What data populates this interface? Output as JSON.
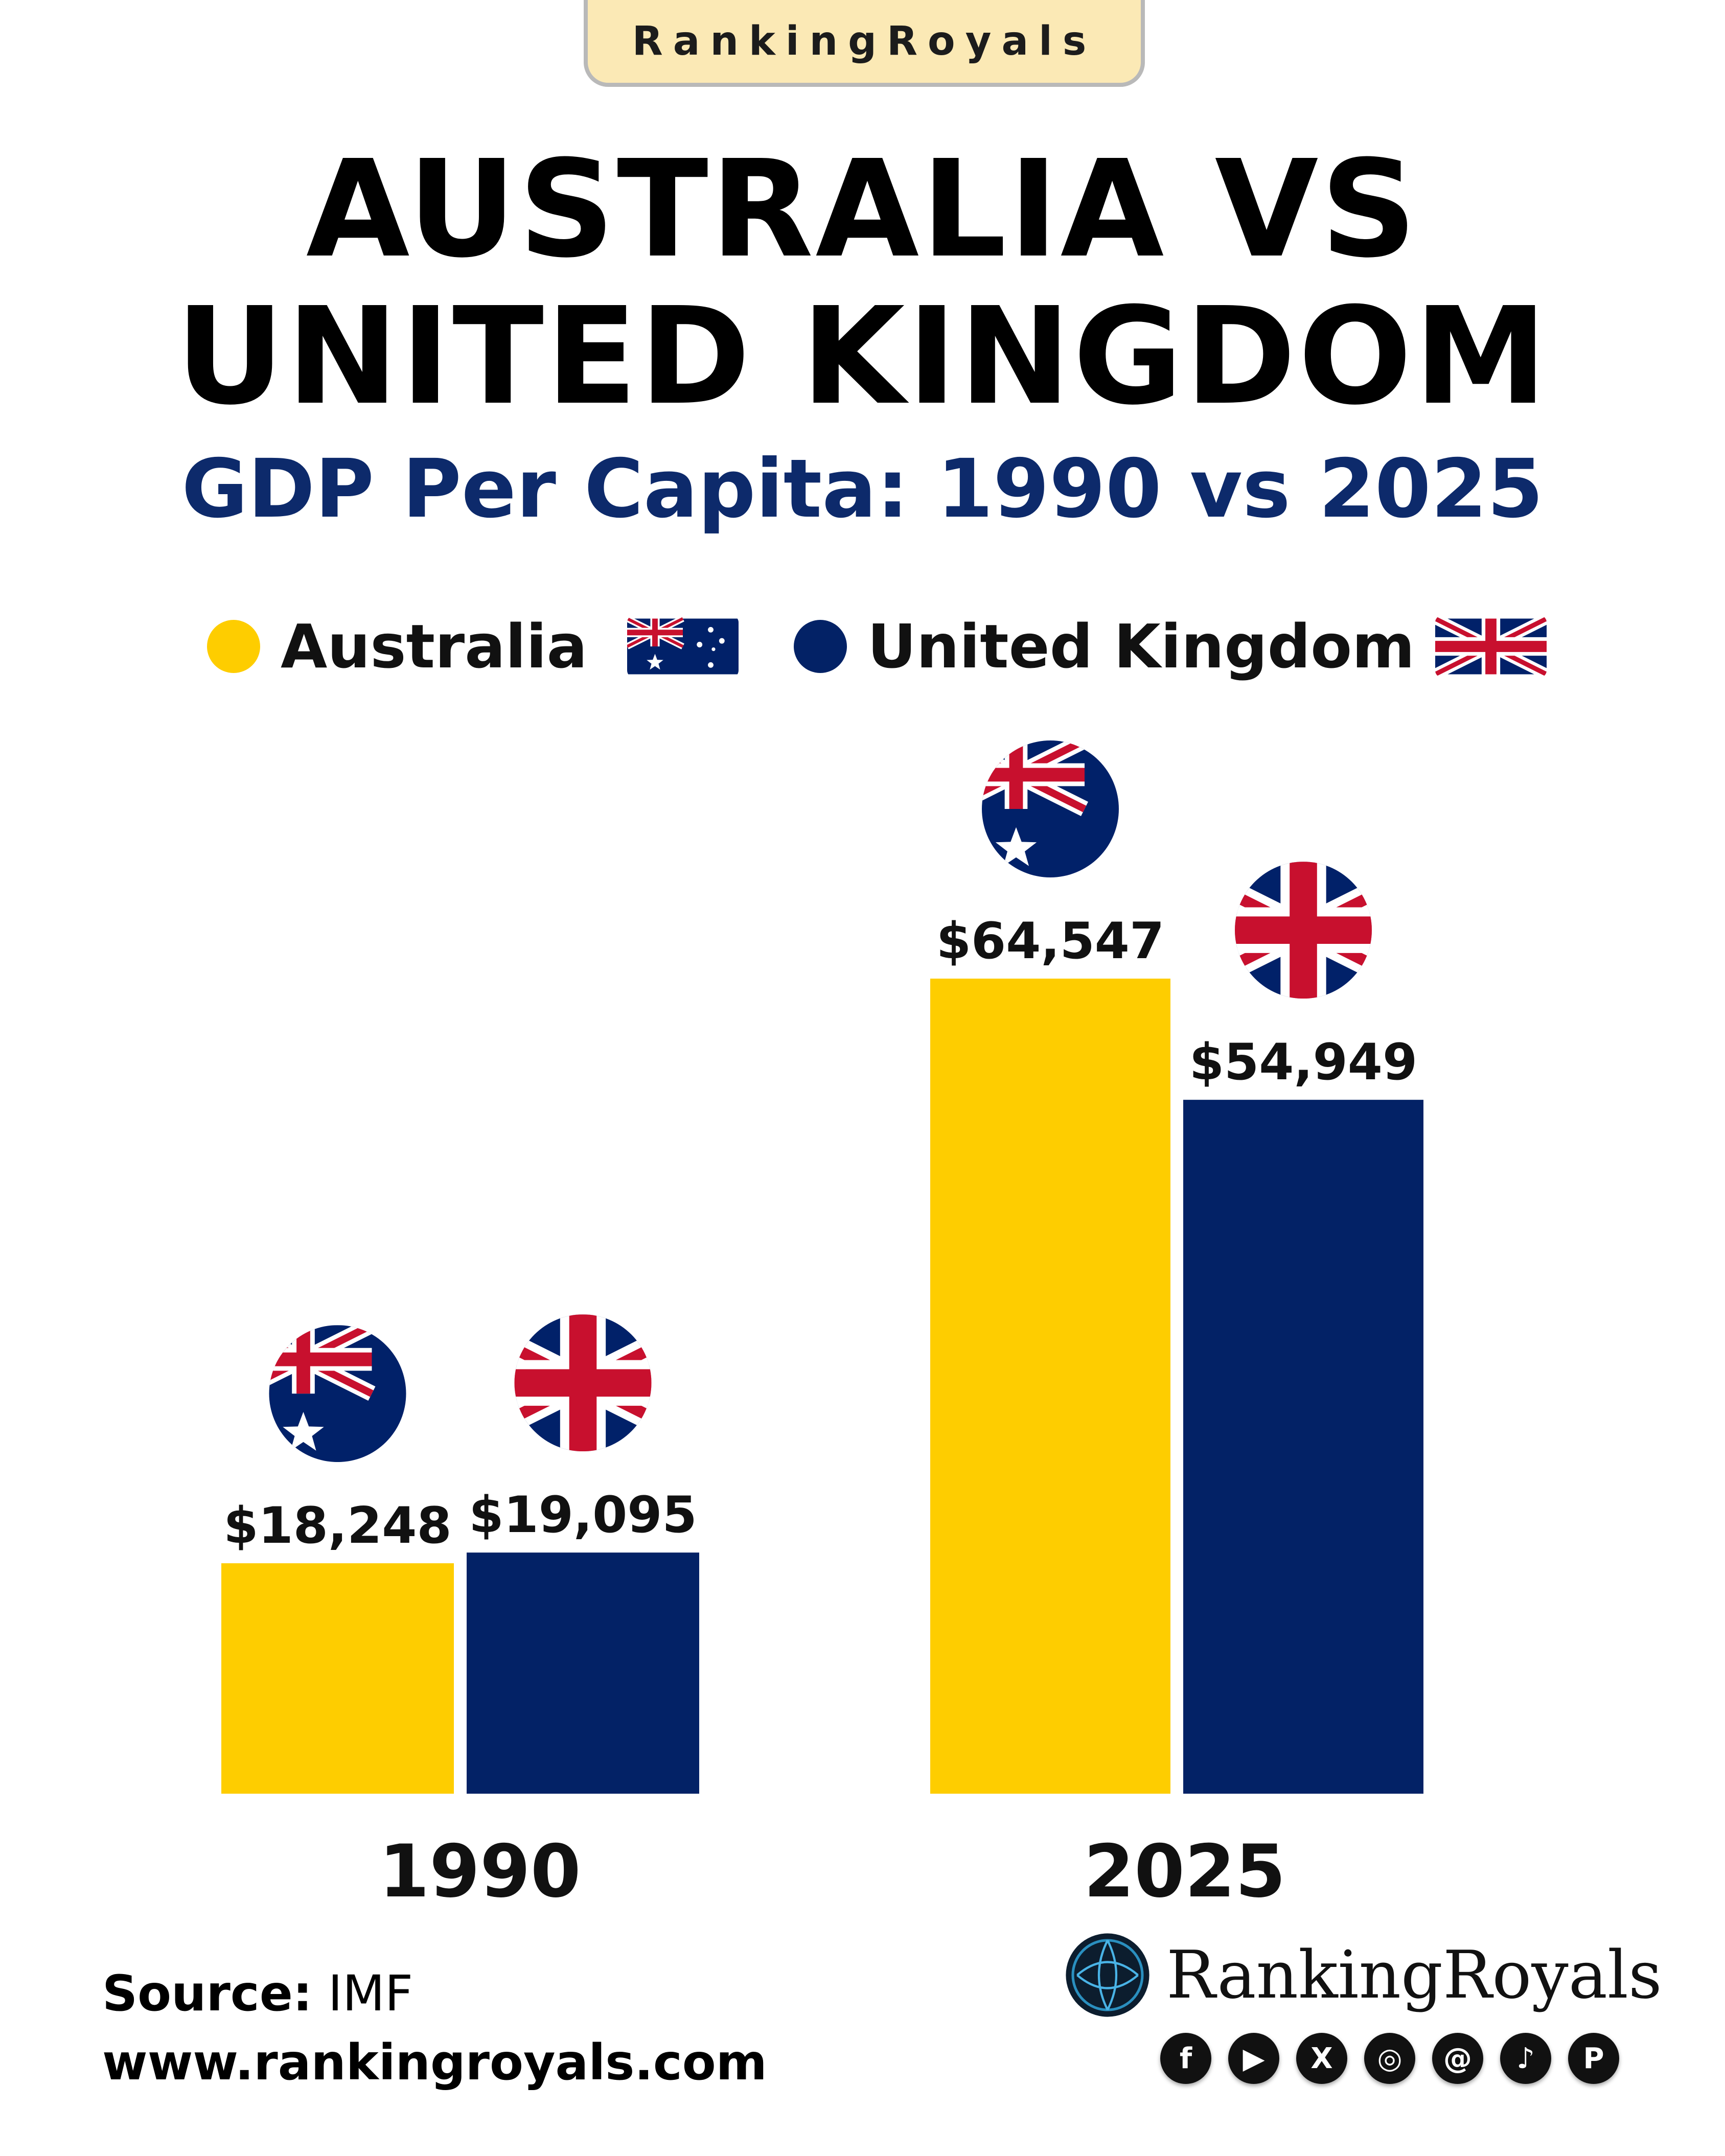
{
  "brand_badge": "RankingRoyals",
  "title_line1": "AUSTRALIA VS",
  "title_line2": "UNITED KINGDOM",
  "subtitle": "GDP Per Capita: 1990 vs 2025",
  "legend": [
    {
      "label": "Australia",
      "color": "#fecd00"
    },
    {
      "label": "United Kingdom",
      "color": "#032266"
    }
  ],
  "chart_data": {
    "type": "bar",
    "categories": [
      "1990",
      "2025"
    ],
    "series": [
      {
        "name": "Australia",
        "values": [
          18248,
          64547
        ],
        "labels": [
          "$18,248",
          "$64,547"
        ],
        "color": "#fecd00"
      },
      {
        "name": "United Kingdom",
        "values": [
          19095,
          54949
        ],
        "labels": [
          "$19,095",
          "$54,949"
        ],
        "color": "#032266"
      }
    ],
    "title": "GDP Per Capita: 1990 vs 2025",
    "xlabel": "",
    "ylabel": "",
    "ylim": [
      0,
      67000
    ],
    "grid": false,
    "legend_position": "top"
  },
  "footer": {
    "source_label": "Source:",
    "source_value": "IMF",
    "website": "www.rankingroyals.com",
    "brand_name": "RankingRoyals",
    "socials": [
      "facebook-icon",
      "youtube-icon",
      "x-icon",
      "instagram-icon",
      "threads-icon",
      "tiktok-icon",
      "pinterest-icon"
    ]
  }
}
